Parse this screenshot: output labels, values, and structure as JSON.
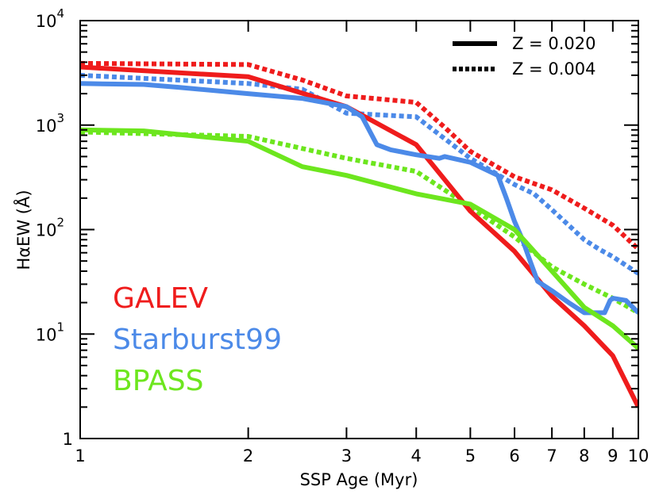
{
  "chart_data": {
    "type": "line",
    "xlabel": "SSP Age (Myr)",
    "ylabel_base": "H",
    "ylabel_alpha": "α",
    "ylabel_rest": "EW (Å)",
    "xlim": [
      1,
      10
    ],
    "ylim": [
      1,
      10000
    ],
    "yscale": "log",
    "grid": false,
    "x_ticks": [
      {
        "value": 1,
        "label": "1"
      },
      {
        "value": 2,
        "label": "2"
      },
      {
        "value": 3,
        "label": "3"
      },
      {
        "value": 4,
        "label": "4"
      },
      {
        "value": 5,
        "label": "5"
      },
      {
        "value": 6,
        "label": "6"
      },
      {
        "value": 7,
        "label": "7"
      },
      {
        "value": 8,
        "label": "8"
      },
      {
        "value": 9,
        "label": "9"
      },
      {
        "value": 10,
        "label": "10"
      }
    ],
    "y_ticks": [
      {
        "value": 1,
        "base": "1",
        "exp": ""
      },
      {
        "value": 10,
        "base": "10",
        "exp": "1"
      },
      {
        "value": 100,
        "base": "10",
        "exp": "2"
      },
      {
        "value": 1000,
        "base": "10",
        "exp": "3"
      },
      {
        "value": 10000,
        "base": "10",
        "exp": "4"
      }
    ],
    "legend": {
      "placement": "top-right",
      "entries": [
        {
          "label": "Z = 0.020",
          "style": "solid"
        },
        {
          "label": "Z = 0.004",
          "style": "dotted"
        }
      ]
    },
    "model_labels": [
      {
        "text": "GALEV",
        "color": "#ef1c1c"
      },
      {
        "text": "Starburst99",
        "color": "#4c8ae8"
      },
      {
        "text": "BPASS",
        "color": "#6de61e"
      }
    ],
    "series": [
      {
        "model": "GALEV",
        "Z": "0.020",
        "style": "solid",
        "color": "#ef1c1c",
        "points": [
          [
            1,
            3600
          ],
          [
            2,
            2900
          ],
          [
            3,
            1500
          ],
          [
            4,
            650
          ],
          [
            5,
            150
          ],
          [
            6,
            62
          ],
          [
            7,
            23
          ],
          [
            8,
            12
          ],
          [
            9,
            6.2
          ],
          [
            10,
            2.0
          ]
        ]
      },
      {
        "model": "GALEV",
        "Z": "0.004",
        "style": "dotted",
        "color": "#ef1c1c",
        "points": [
          [
            1,
            3900
          ],
          [
            2,
            3800
          ],
          [
            2.5,
            2700
          ],
          [
            3,
            1900
          ],
          [
            4,
            1650
          ],
          [
            4.5,
            950
          ],
          [
            5,
            560
          ],
          [
            6,
            320
          ],
          [
            7,
            240
          ],
          [
            8,
            160
          ],
          [
            9,
            110
          ],
          [
            10,
            65
          ]
        ]
      },
      {
        "model": "Starburst99",
        "Z": "0.020",
        "style": "solid",
        "color": "#4c8ae8",
        "points": [
          [
            1,
            2500
          ],
          [
            1.3,
            2450
          ],
          [
            1.5,
            2300
          ],
          [
            2,
            2000
          ],
          [
            2.5,
            1800
          ],
          [
            3,
            1500
          ],
          [
            3.2,
            1200
          ],
          [
            3.4,
            650
          ],
          [
            3.6,
            580
          ],
          [
            4,
            520
          ],
          [
            4.4,
            480
          ],
          [
            4.5,
            500
          ],
          [
            5,
            440
          ],
          [
            5.6,
            330
          ],
          [
            5.8,
            200
          ],
          [
            6,
            120
          ],
          [
            6.2,
            80
          ],
          [
            6.4,
            50
          ],
          [
            6.6,
            32
          ],
          [
            7,
            26
          ],
          [
            7.5,
            20
          ],
          [
            8,
            16
          ],
          [
            8.5,
            16
          ],
          [
            8.7,
            16
          ],
          [
            8.9,
            21
          ],
          [
            9,
            22
          ],
          [
            9.5,
            21
          ],
          [
            10,
            16
          ]
        ]
      },
      {
        "model": "Starburst99",
        "Z": "0.004",
        "style": "dotted",
        "color": "#4c8ae8",
        "points": [
          [
            1,
            3000
          ],
          [
            2,
            2500
          ],
          [
            2.5,
            2200
          ],
          [
            3,
            1300
          ],
          [
            4,
            1200
          ],
          [
            5,
            480
          ],
          [
            6,
            270
          ],
          [
            6.5,
            220
          ],
          [
            7,
            155
          ],
          [
            7.5,
            110
          ],
          [
            8,
            80
          ],
          [
            8.5,
            65
          ],
          [
            9,
            55
          ],
          [
            10,
            38
          ]
        ]
      },
      {
        "model": "BPASS",
        "Z": "0.020",
        "style": "solid",
        "color": "#6de61e",
        "points": [
          [
            1,
            900
          ],
          [
            1.3,
            880
          ],
          [
            2,
            700
          ],
          [
            2.5,
            400
          ],
          [
            3,
            330
          ],
          [
            4,
            220
          ],
          [
            5,
            175
          ],
          [
            6,
            100
          ],
          [
            6.3,
            75
          ],
          [
            7,
            40
          ],
          [
            8,
            18
          ],
          [
            9,
            12
          ],
          [
            10,
            7.3
          ]
        ]
      },
      {
        "model": "BPASS",
        "Z": "0.004",
        "style": "dotted",
        "color": "#6de61e",
        "points": [
          [
            1,
            860
          ],
          [
            2,
            780
          ],
          [
            3,
            480
          ],
          [
            4,
            360
          ],
          [
            5,
            165
          ],
          [
            6,
            85
          ],
          [
            7,
            44
          ],
          [
            8,
            30
          ],
          [
            9,
            22
          ],
          [
            10,
            16
          ]
        ]
      }
    ]
  }
}
